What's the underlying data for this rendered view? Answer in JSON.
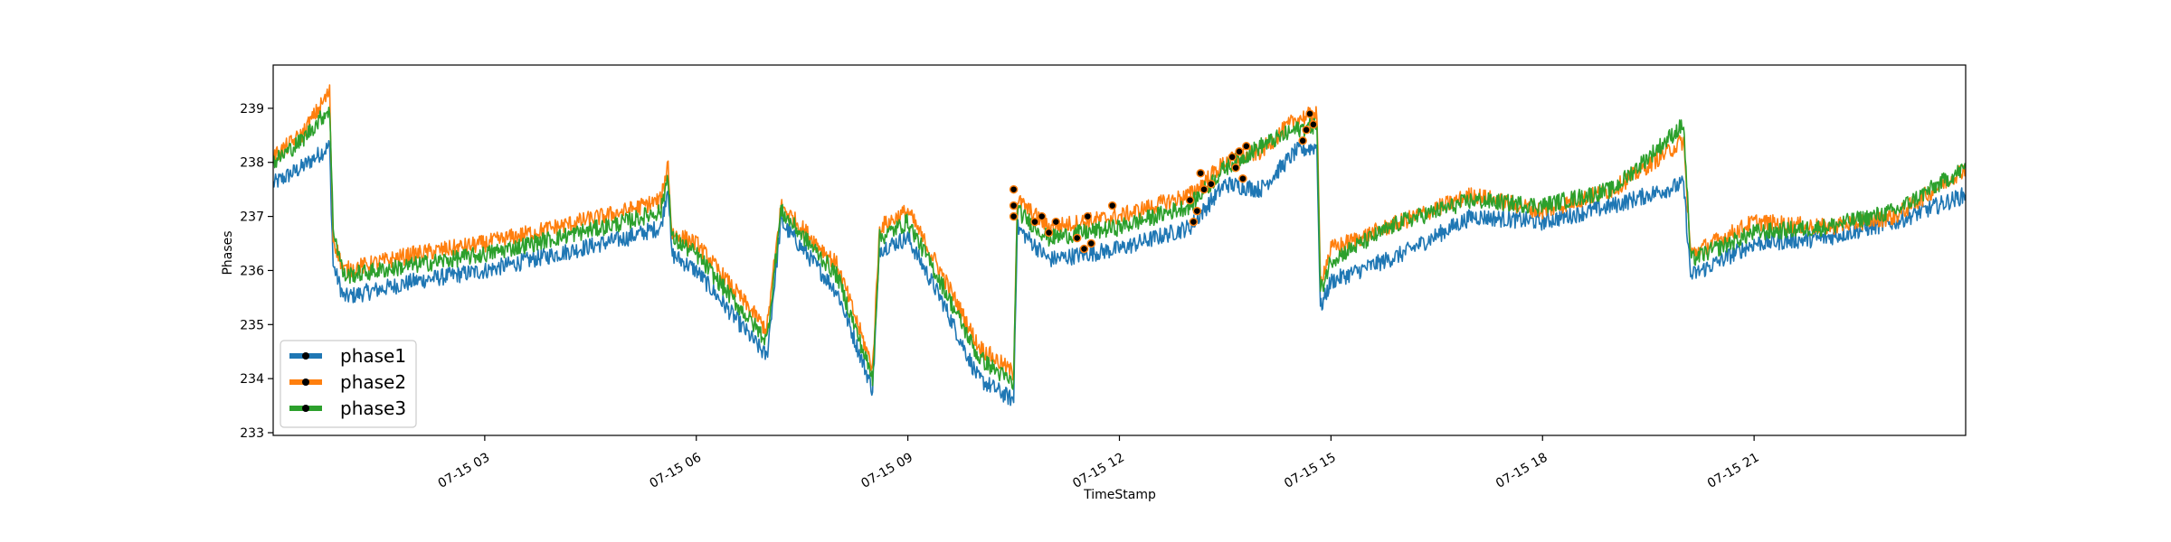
{
  "chart_data": {
    "type": "line",
    "title": "",
    "xlabel": "TimeStamp",
    "ylabel": "Phases",
    "x_start": "07-15 00:00",
    "x_end": "07-15 23:59",
    "xlim_hours": [
      0,
      24
    ],
    "ylim": [
      232.95,
      239.8
    ],
    "x_ticks": [
      {
        "hour": 3,
        "label": "07-15 03"
      },
      {
        "hour": 6,
        "label": "07-15 06"
      },
      {
        "hour": 9,
        "label": "07-15 09"
      },
      {
        "hour": 12,
        "label": "07-15 12"
      },
      {
        "hour": 15,
        "label": "07-15 15"
      },
      {
        "hour": 18,
        "label": "07-15 18"
      },
      {
        "hour": 21,
        "label": "07-15 21"
      }
    ],
    "y_ticks": [
      233,
      234,
      235,
      236,
      237,
      238,
      239
    ],
    "grid": false,
    "legend_position": "lower-left",
    "anomaly_marker_color": "#000000",
    "series": [
      {
        "name": "phase1",
        "color": "#1f77b4",
        "points": [
          [
            0,
            237.6
          ],
          [
            0.4,
            237.9
          ],
          [
            0.8,
            238.3
          ],
          [
            0.85,
            236.1
          ],
          [
            1.0,
            235.5
          ],
          [
            2.0,
            235.8
          ],
          [
            3.0,
            236.0
          ],
          [
            4.0,
            236.3
          ],
          [
            5.0,
            236.6
          ],
          [
            5.5,
            236.8
          ],
          [
            5.6,
            237.6
          ],
          [
            5.65,
            236.3
          ],
          [
            6.0,
            236.0
          ],
          [
            7.0,
            234.4
          ],
          [
            7.2,
            236.9
          ],
          [
            8.0,
            235.6
          ],
          [
            8.5,
            233.8
          ],
          [
            8.6,
            236.4
          ],
          [
            9.0,
            236.6
          ],
          [
            9.5,
            235.4
          ],
          [
            10.0,
            234.0
          ],
          [
            10.5,
            233.6
          ],
          [
            10.55,
            236.8
          ],
          [
            11.0,
            236.2
          ],
          [
            12.0,
            236.4
          ],
          [
            13.0,
            236.8
          ],
          [
            13.5,
            237.6
          ],
          [
            14.0,
            237.5
          ],
          [
            14.5,
            238.2
          ],
          [
            14.8,
            238.3
          ],
          [
            14.85,
            235.3
          ],
          [
            15.0,
            235.8
          ],
          [
            16.0,
            236.3
          ],
          [
            17.0,
            237.0
          ],
          [
            18.0,
            236.9
          ],
          [
            19.0,
            237.2
          ],
          [
            20.0,
            237.6
          ],
          [
            20.1,
            235.9
          ],
          [
            21.0,
            236.5
          ],
          [
            22.0,
            236.6
          ],
          [
            23.0,
            236.9
          ],
          [
            24.0,
            237.4
          ]
        ]
      },
      {
        "name": "phase2",
        "color": "#ff7f0e",
        "points": [
          [
            0,
            238.1
          ],
          [
            0.4,
            238.5
          ],
          [
            0.8,
            239.3
          ],
          [
            0.85,
            236.6
          ],
          [
            1.0,
            236.0
          ],
          [
            2.0,
            236.3
          ],
          [
            3.0,
            236.5
          ],
          [
            4.0,
            236.8
          ],
          [
            5.0,
            237.1
          ],
          [
            5.5,
            237.3
          ],
          [
            5.6,
            238.0
          ],
          [
            5.65,
            236.7
          ],
          [
            6.0,
            236.5
          ],
          [
            7.0,
            234.9
          ],
          [
            7.2,
            237.2
          ],
          [
            8.0,
            236.1
          ],
          [
            8.5,
            234.2
          ],
          [
            8.6,
            236.8
          ],
          [
            9.0,
            237.1
          ],
          [
            9.5,
            235.9
          ],
          [
            10.0,
            234.6
          ],
          [
            10.5,
            234.1
          ],
          [
            10.55,
            237.3
          ],
          [
            11.0,
            236.8
          ],
          [
            12.0,
            237.0
          ],
          [
            13.0,
            237.4
          ],
          [
            13.5,
            238.0
          ],
          [
            14.0,
            238.2
          ],
          [
            14.5,
            238.8
          ],
          [
            14.8,
            238.9
          ],
          [
            14.85,
            235.8
          ],
          [
            15.0,
            236.4
          ],
          [
            16.0,
            236.9
          ],
          [
            17.0,
            237.4
          ],
          [
            18.0,
            237.1
          ],
          [
            19.0,
            237.5
          ],
          [
            20.0,
            238.4
          ],
          [
            20.1,
            236.3
          ],
          [
            21.0,
            236.9
          ],
          [
            22.0,
            236.8
          ],
          [
            23.0,
            237.0
          ],
          [
            24.0,
            237.9
          ]
        ]
      },
      {
        "name": "phase3",
        "color": "#2ca02c",
        "points": [
          [
            0,
            238.0
          ],
          [
            0.4,
            238.4
          ],
          [
            0.8,
            239.0
          ],
          [
            0.85,
            236.8
          ],
          [
            1.0,
            235.9
          ],
          [
            2.0,
            236.1
          ],
          [
            3.0,
            236.3
          ],
          [
            4.0,
            236.6
          ],
          [
            5.0,
            236.9
          ],
          [
            5.5,
            237.1
          ],
          [
            5.6,
            237.8
          ],
          [
            5.65,
            236.6
          ],
          [
            6.0,
            236.3
          ],
          [
            7.0,
            234.7
          ],
          [
            7.2,
            237.1
          ],
          [
            8.0,
            235.9
          ],
          [
            8.5,
            234.0
          ],
          [
            8.6,
            236.6
          ],
          [
            9.0,
            236.9
          ],
          [
            9.5,
            235.7
          ],
          [
            10.0,
            234.4
          ],
          [
            10.5,
            233.9
          ],
          [
            10.55,
            237.1
          ],
          [
            11.0,
            236.6
          ],
          [
            12.0,
            236.8
          ],
          [
            13.0,
            237.2
          ],
          [
            13.5,
            237.9
          ],
          [
            14.0,
            238.3
          ],
          [
            14.5,
            238.6
          ],
          [
            14.8,
            238.7
          ],
          [
            14.85,
            235.6
          ],
          [
            15.0,
            236.2
          ],
          [
            16.0,
            236.9
          ],
          [
            17.0,
            237.3
          ],
          [
            18.0,
            237.2
          ],
          [
            19.0,
            237.5
          ],
          [
            20.0,
            238.7
          ],
          [
            20.1,
            236.2
          ],
          [
            21.0,
            236.7
          ],
          [
            22.0,
            236.8
          ],
          [
            23.0,
            237.1
          ],
          [
            24.0,
            237.9
          ]
        ]
      }
    ],
    "anomalies": [
      [
        10.5,
        237.5
      ],
      [
        10.5,
        237.2
      ],
      [
        10.5,
        237.0
      ],
      [
        10.8,
        236.9
      ],
      [
        10.9,
        237.0
      ],
      [
        11.0,
        236.7
      ],
      [
        11.1,
        236.9
      ],
      [
        11.4,
        236.6
      ],
      [
        11.5,
        236.4
      ],
      [
        11.55,
        237.0
      ],
      [
        11.6,
        236.5
      ],
      [
        11.9,
        237.2
      ],
      [
        13.0,
        237.3
      ],
      [
        13.05,
        236.9
      ],
      [
        13.1,
        237.1
      ],
      [
        13.15,
        237.8
      ],
      [
        13.2,
        237.5
      ],
      [
        13.3,
        237.6
      ],
      [
        13.6,
        238.1
      ],
      [
        13.65,
        237.9
      ],
      [
        13.7,
        238.2
      ],
      [
        13.75,
        237.7
      ],
      [
        13.8,
        238.3
      ],
      [
        14.6,
        238.4
      ],
      [
        14.65,
        238.6
      ],
      [
        14.7,
        238.9
      ],
      [
        14.75,
        238.7
      ]
    ]
  },
  "legend": {
    "items": [
      {
        "label": "phase1",
        "color": "#1f77b4"
      },
      {
        "label": "phase2",
        "color": "#ff7f0e"
      },
      {
        "label": "phase3",
        "color": "#2ca02c"
      }
    ]
  }
}
